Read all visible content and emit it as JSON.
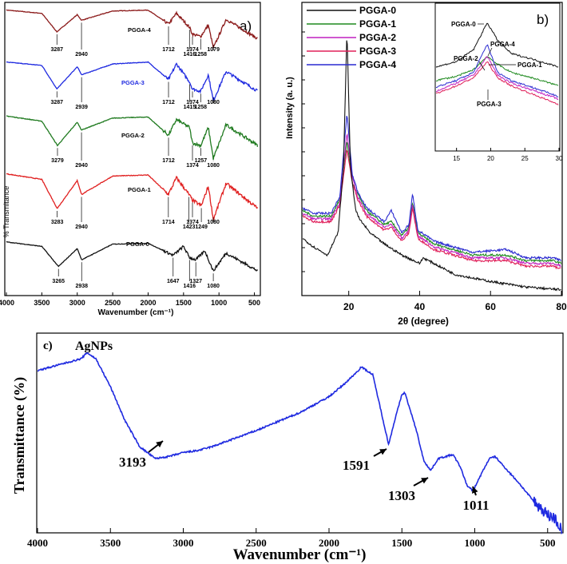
{
  "panels": {
    "a": {
      "label": "a)",
      "xlabel": "Wavenumber (cm⁻¹)",
      "ylabel": "% Transmitance",
      "xlim": [
        4000,
        450
      ],
      "xticks": [
        4000,
        3500,
        3000,
        2500,
        2000,
        1500,
        1000,
        500
      ],
      "colors": {
        "PGGA-4": "#8b1a1a",
        "PGGA-3": "#1f2ae0",
        "PGGA-2": "#1f7a1f",
        "PGGA-1": "#e01f1f",
        "PGGA-0": "#111111"
      },
      "spectra": [
        {
          "name": "PGGA-4",
          "annotations": [
            "3287",
            "2940",
            "1712",
            "1416",
            "1374",
            "1258",
            "1079"
          ]
        },
        {
          "name": "PGGA-3",
          "annotations": [
            "3287",
            "2939",
            "1712",
            "1415",
            "1374",
            "1258",
            "1080"
          ]
        },
        {
          "name": "PGGA-2",
          "annotations": [
            "3279",
            "2940",
            "1712",
            "1374",
            "1257",
            "1080"
          ]
        },
        {
          "name": "PGGA-1",
          "annotations": [
            "3283",
            "2940",
            "1714",
            "1423",
            "1374",
            "1249",
            "1080"
          ]
        },
        {
          "name": "PGGA-0",
          "annotations": [
            "3265",
            "2938",
            "1647",
            "1416",
            "1327",
            "1080"
          ]
        }
      ]
    },
    "b": {
      "label": "b)",
      "xlabel": "2θ (degree)",
      "ylabel": "Intensity (a. u.)",
      "xlim": [
        7,
        80
      ],
      "xticks": [
        20,
        40,
        60,
        80
      ],
      "legend": [
        "PGGA-0",
        "PGGA-1",
        "PGGA-2",
        "PGGA-3",
        "PGGA-4"
      ],
      "colors": {
        "PGGA-0": "#111111",
        "PGGA-1": "#1f8a1f",
        "PGGA-2": "#c020c0",
        "PGGA-3": "#e0205a",
        "PGGA-4": "#2a2ad0"
      },
      "peaks": [
        19.5,
        22.5,
        32,
        38,
        44,
        64.5,
        77.5
      ],
      "inset": {
        "xlim": [
          12,
          30
        ],
        "xticks": [
          15,
          20,
          25,
          30
        ],
        "labels": [
          "PGGA-0",
          "PGGA-4",
          "PGGA-2",
          "PGGA-1",
          "PGGA-3"
        ]
      }
    },
    "c": {
      "label": "c)",
      "title": "AgNPs",
      "xlabel": "Wavenumber (cm⁻¹)",
      "ylabel": "Transmittance (%)",
      "xlim": [
        4000,
        400
      ],
      "xticks": [
        4000,
        3500,
        3000,
        2500,
        2000,
        1500,
        1000,
        500
      ],
      "annotations": [
        "3193",
        "1591",
        "1303",
        "1011"
      ]
    }
  },
  "chart_data": [
    {
      "type": "line",
      "title": "a)",
      "xlabel": "Wavenumber (cm⁻¹)",
      "ylabel": "% Transmitance",
      "xlim": [
        4000,
        450
      ],
      "series": [
        {
          "name": "PGGA-4",
          "x": [
            4000,
            3500,
            3287,
            3000,
            2940,
            2500,
            2000,
            1712,
            1600,
            1416,
            1374,
            1258,
            1150,
            1079,
            900,
            450
          ],
          "values": [
            0.92,
            0.85,
            0.45,
            0.82,
            0.7,
            0.9,
            0.92,
            0.62,
            0.85,
            0.55,
            0.4,
            0.35,
            0.6,
            0.1,
            0.72,
            0.3
          ]
        },
        {
          "name": "PGGA-3",
          "x": [
            4000,
            3500,
            3287,
            3000,
            2939,
            2500,
            2000,
            1712,
            1600,
            1415,
            1374,
            1258,
            1150,
            1080,
            900,
            450
          ],
          "values": [
            0.92,
            0.85,
            0.35,
            0.82,
            0.65,
            0.88,
            0.92,
            0.55,
            0.88,
            0.5,
            0.35,
            0.3,
            0.65,
            0.1,
            0.72,
            0.3
          ]
        },
        {
          "name": "PGGA-2",
          "x": [
            4000,
            3500,
            3279,
            3000,
            2940,
            2500,
            2000,
            1712,
            1600,
            1416,
            1374,
            1257,
            1150,
            1080,
            900,
            450
          ],
          "values": [
            0.92,
            0.82,
            0.35,
            0.8,
            0.65,
            0.88,
            0.9,
            0.55,
            0.85,
            0.7,
            0.4,
            0.35,
            0.7,
            0.1,
            0.75,
            0.35
          ]
        },
        {
          "name": "PGGA-1",
          "x": [
            4000,
            3500,
            3283,
            3000,
            2940,
            2500,
            2000,
            1714,
            1600,
            1423,
            1374,
            1249,
            1150,
            1080,
            900,
            450
          ],
          "values": [
            0.92,
            0.82,
            0.3,
            0.8,
            0.55,
            0.88,
            0.9,
            0.55,
            0.85,
            0.55,
            0.45,
            0.35,
            0.7,
            0.1,
            0.75,
            0.3
          ]
        },
        {
          "name": "PGGA-0",
          "x": [
            4000,
            3500,
            3265,
            3000,
            2938,
            2500,
            2000,
            1647,
            1500,
            1416,
            1327,
            1200,
            1080,
            900,
            450
          ],
          "values": [
            0.95,
            0.85,
            0.4,
            0.8,
            0.55,
            0.9,
            0.92,
            0.65,
            0.85,
            0.6,
            0.55,
            0.75,
            0.3,
            0.7,
            0.3
          ]
        }
      ]
    },
    {
      "type": "line",
      "title": "b)",
      "xlabel": "2θ (degree)",
      "ylabel": "Intensity (a. u.)",
      "xlim": [
        7,
        80
      ],
      "series": [
        {
          "name": "PGGA-0",
          "x": [
            7,
            10,
            14,
            17,
            18.5,
            19.5,
            20.5,
            22,
            23,
            26,
            30,
            35,
            40,
            41,
            50,
            60,
            70,
            80
          ],
          "values": [
            0.2,
            0.17,
            0.14,
            0.22,
            0.45,
            0.95,
            0.45,
            0.3,
            0.27,
            0.22,
            0.18,
            0.14,
            0.11,
            0.13,
            0.07,
            0.045,
            0.025,
            0.015
          ]
        },
        {
          "name": "PGGA-1",
          "x": [
            7,
            10,
            15,
            17.5,
            19.5,
            21,
            22.5,
            25,
            30,
            32,
            35,
            37,
            38,
            39.5,
            44,
            55,
            64.5,
            70,
            77.5,
            80
          ],
          "values": [
            0.3,
            0.28,
            0.28,
            0.34,
            0.55,
            0.4,
            0.36,
            0.3,
            0.25,
            0.26,
            0.21,
            0.24,
            0.33,
            0.22,
            0.18,
            0.14,
            0.14,
            0.12,
            0.12,
            0.11
          ]
        },
        {
          "name": "PGGA-2",
          "x": [
            7,
            10,
            15,
            17.5,
            19.5,
            21,
            22.5,
            25,
            30,
            32,
            35,
            37,
            38,
            39.5,
            44,
            55,
            64.5,
            70,
            77.5,
            80
          ],
          "values": [
            0.29,
            0.27,
            0.27,
            0.33,
            0.58,
            0.42,
            0.35,
            0.29,
            0.24,
            0.25,
            0.2,
            0.23,
            0.32,
            0.21,
            0.17,
            0.13,
            0.13,
            0.11,
            0.11,
            0.1
          ]
        },
        {
          "name": "PGGA-3",
          "x": [
            7,
            10,
            15,
            17.5,
            19.5,
            21,
            22.5,
            25,
            30,
            32,
            35,
            37,
            38,
            39.5,
            44,
            55,
            64.5,
            70,
            77.5,
            80
          ],
          "values": [
            0.28,
            0.26,
            0.26,
            0.32,
            0.52,
            0.4,
            0.34,
            0.28,
            0.23,
            0.24,
            0.19,
            0.22,
            0.31,
            0.2,
            0.16,
            0.12,
            0.12,
            0.1,
            0.1,
            0.09
          ]
        },
        {
          "name": "PGGA-4",
          "x": [
            7,
            10,
            15,
            17.5,
            19.5,
            21,
            22.5,
            25,
            30,
            32,
            35,
            37,
            38,
            39.5,
            44,
            55,
            64.5,
            70,
            77.5,
            80
          ],
          "values": [
            0.31,
            0.29,
            0.29,
            0.35,
            0.65,
            0.43,
            0.37,
            0.31,
            0.26,
            0.3,
            0.22,
            0.25,
            0.36,
            0.23,
            0.19,
            0.15,
            0.16,
            0.13,
            0.13,
            0.12
          ]
        }
      ]
    },
    {
      "type": "line",
      "title": "AgNPs",
      "xlabel": "Wavenumber (cm⁻¹)",
      "ylabel": "Transmittance (%)",
      "xlim": [
        4000,
        400
      ],
      "series": [
        {
          "name": "AgNPs",
          "x": [
            4000,
            3800,
            3700,
            3660,
            3600,
            3500,
            3400,
            3300,
            3193,
            3100,
            3000,
            2900,
            2800,
            2500,
            2200,
            2000,
            1900,
            1800,
            1780,
            1700,
            1650,
            1591,
            1550,
            1500,
            1480,
            1400,
            1350,
            1303,
            1250,
            1200,
            1150,
            1100,
            1050,
            1011,
            950,
            900,
            860,
            800,
            700,
            600,
            500,
            450,
            420,
            400
          ],
          "values": [
            0.8,
            0.84,
            0.86,
            0.89,
            0.86,
            0.72,
            0.55,
            0.42,
            0.36,
            0.37,
            0.39,
            0.4,
            0.42,
            0.5,
            0.59,
            0.67,
            0.73,
            0.8,
            0.82,
            0.78,
            0.62,
            0.43,
            0.55,
            0.68,
            0.69,
            0.5,
            0.35,
            0.3,
            0.36,
            0.37,
            0.38,
            0.32,
            0.22,
            0.2,
            0.29,
            0.36,
            0.37,
            0.32,
            0.24,
            0.15,
            0.08,
            0.06,
            0.02,
            0.0
          ]
        }
      ]
    }
  ]
}
